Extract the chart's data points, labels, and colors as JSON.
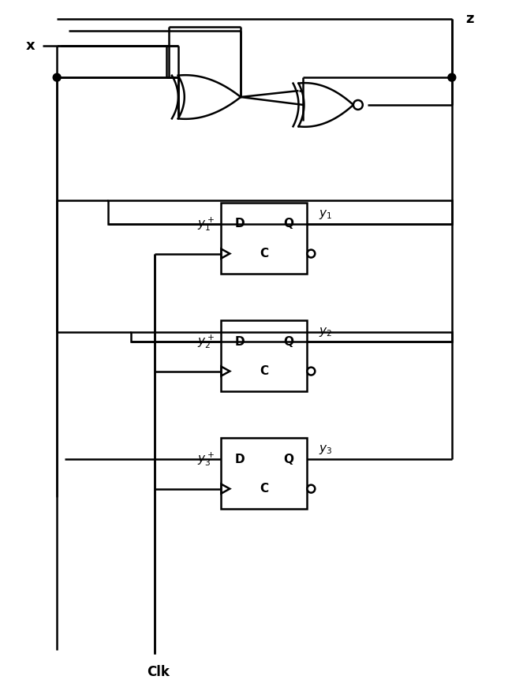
{
  "bg_color": "#ffffff",
  "line_color": "#000000",
  "line_width": 1.8,
  "figsize": [
    6.44,
    8.76
  ],
  "dpi": 100,
  "labels": {
    "x": {
      "text": "x",
      "fs": 13
    },
    "z": {
      "text": "z",
      "fs": 13
    },
    "clk": {
      "text": "Clk",
      "fs": 12
    },
    "y1p": {
      "text": "$y_1^+$",
      "fs": 11
    },
    "y1": {
      "text": "$y_1$",
      "fs": 11
    },
    "y2p": {
      "text": "$y_2^+$",
      "fs": 11
    },
    "y2": {
      "text": "$y_2$",
      "fs": 11
    },
    "y3p": {
      "text": "$y_3^+$",
      "fs": 11
    },
    "y3": {
      "text": "$y_3$",
      "fs": 11
    }
  }
}
